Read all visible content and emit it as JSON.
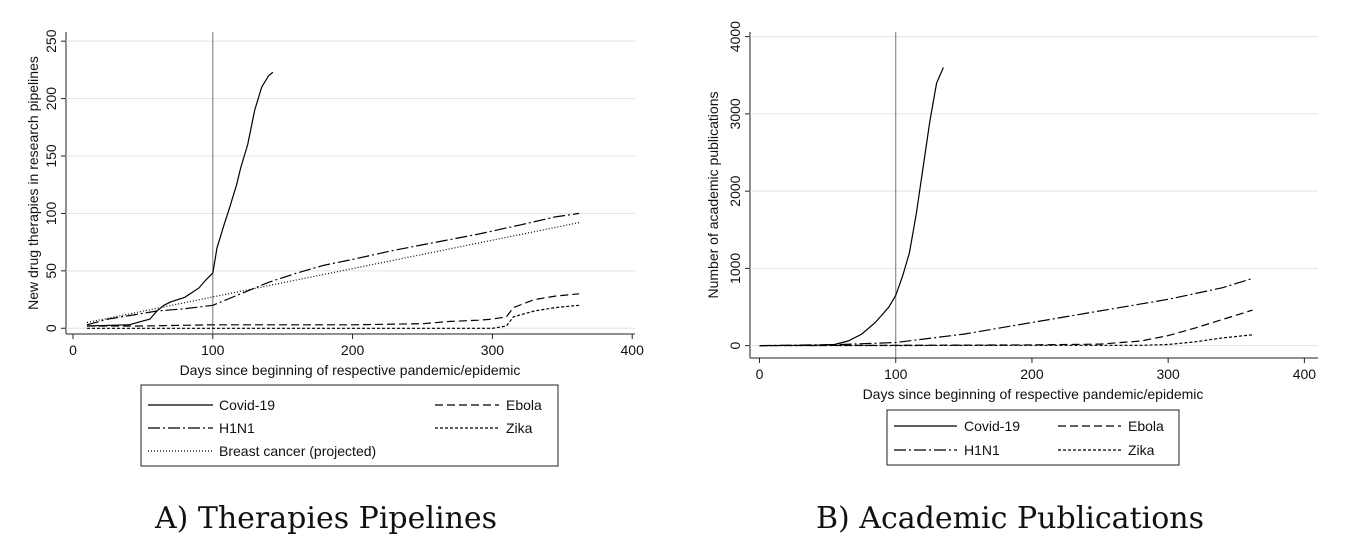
{
  "figure": {
    "panels": [
      {
        "caption": "A) Therapies Pipelines"
      },
      {
        "caption": "B) Academic Publications"
      }
    ]
  },
  "chart_data": [
    {
      "type": "line",
      "ylabel": "New drug therapies in research pipelines",
      "xlabel": "Days since beginning of respective pandemic/epidemic",
      "xlim": [
        -5,
        402
      ],
      "ylim": [
        -5,
        258
      ],
      "xticks": [
        0,
        100,
        200,
        300,
        400
      ],
      "yticks": [
        0,
        50,
        100,
        150,
        200,
        250
      ],
      "grid": "horizontal",
      "reference_line_x": 100,
      "legend_placement": "bottom",
      "series": [
        {
          "name": "Covid-19",
          "x": [
            10,
            40,
            55,
            60,
            65,
            70,
            80,
            90,
            95,
            100,
            103,
            108,
            112,
            117,
            120,
            125,
            130,
            135,
            140,
            143
          ],
          "y": [
            2,
            3,
            8,
            15,
            20,
            23,
            27,
            35,
            42,
            48,
            70,
            90,
            105,
            125,
            140,
            160,
            190,
            210,
            220,
            223
          ]
        },
        {
          "name": "H1N1",
          "x": [
            10,
            25,
            45,
            60,
            80,
            100,
            120,
            140,
            160,
            180,
            200,
            230,
            260,
            290,
            320,
            345,
            362
          ],
          "y": [
            3,
            8,
            12,
            15,
            17,
            20,
            30,
            40,
            48,
            55,
            60,
            68,
            75,
            82,
            90,
            97,
            100
          ]
        },
        {
          "name": "Breast cancer (projected)",
          "x": [
            10,
            362
          ],
          "y": [
            5,
            92
          ]
        },
        {
          "name": "Ebola",
          "x": [
            10,
            50,
            100,
            200,
            250,
            270,
            290,
            300,
            310,
            315,
            330,
            345,
            362
          ],
          "y": [
            2,
            2,
            3,
            3,
            4,
            6,
            7,
            8,
            10,
            18,
            25,
            28,
            30
          ]
        },
        {
          "name": "Zika",
          "x": [
            10,
            100,
            200,
            300,
            310,
            315,
            330,
            345,
            362
          ],
          "y": [
            0,
            0,
            0,
            0,
            2,
            10,
            15,
            18,
            20
          ]
        }
      ]
    },
    {
      "type": "line",
      "ylabel": "Number of academic publications",
      "xlabel": "Days since beginning of respective pandemic/epidemic",
      "xlim": [
        -7,
        410
      ],
      "ylim": [
        -160,
        4060
      ],
      "xticks": [
        0,
        100,
        200,
        300,
        400
      ],
      "yticks": [
        0,
        1000,
        2000,
        3000,
        4000
      ],
      "grid": "horizontal",
      "reference_line_x": 100,
      "legend_placement": "bottom",
      "series": [
        {
          "name": "Covid-19",
          "x": [
            0,
            40,
            55,
            65,
            75,
            85,
            95,
            100,
            105,
            110,
            115,
            120,
            125,
            130,
            135
          ],
          "y": [
            0,
            5,
            15,
            60,
            150,
            300,
            500,
            650,
            900,
            1200,
            1700,
            2300,
            2900,
            3400,
            3600
          ]
        },
        {
          "name": "H1N1",
          "x": [
            0,
            60,
            100,
            150,
            200,
            250,
            300,
            340,
            362
          ],
          "y": [
            0,
            15,
            40,
            150,
            300,
            450,
            600,
            750,
            870
          ]
        },
        {
          "name": "Ebola",
          "x": [
            0,
            100,
            200,
            250,
            280,
            300,
            320,
            340,
            362
          ],
          "y": [
            0,
            5,
            10,
            20,
            60,
            130,
            230,
            340,
            460
          ]
        },
        {
          "name": "Zika",
          "x": [
            0,
            100,
            200,
            280,
            300,
            320,
            340,
            362
          ],
          "y": [
            0,
            2,
            5,
            5,
            15,
            50,
            100,
            140
          ]
        }
      ]
    }
  ]
}
